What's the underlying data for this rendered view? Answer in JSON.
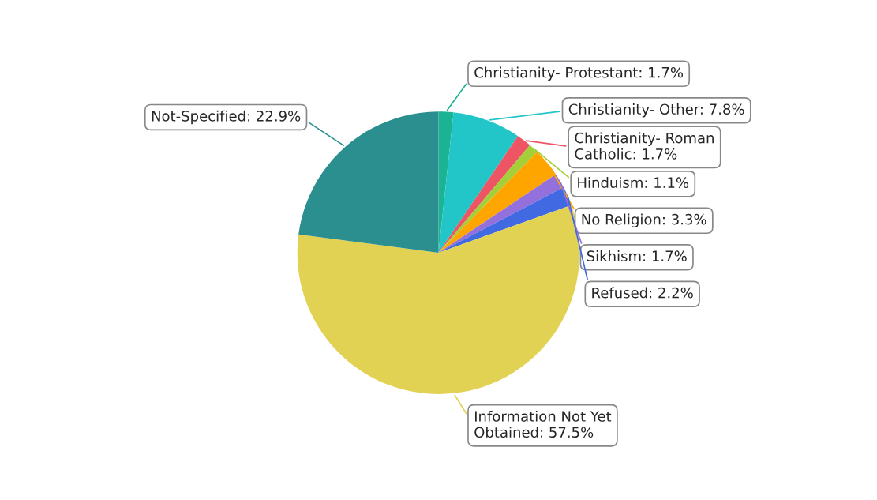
{
  "chart_data": {
    "type": "pie",
    "categories": [
      "Christianity- Protestant",
      "Christianity- Other",
      "Christianity- Roman Catholic",
      "Hinduism",
      "No Religion",
      "Sikhism",
      "Refused",
      "Information Not Yet Obtained",
      "Not-Specified"
    ],
    "values": [
      1.7,
      7.8,
      1.7,
      1.1,
      3.3,
      1.7,
      2.2,
      57.5,
      22.9
    ],
    "colors": [
      "#1ab394",
      "#23c6c8",
      "#ed5565",
      "#a3d039",
      "#ffa500",
      "#9370db",
      "#4169e1",
      "#e2d253",
      "#2b8f8f"
    ],
    "value_labels": [
      "1.7%",
      "7.8%",
      "1.7%",
      "1.1%",
      "3.3%",
      "1.7%",
      "2.2%",
      "57.5%",
      "22.9%"
    ],
    "legend": false
  }
}
